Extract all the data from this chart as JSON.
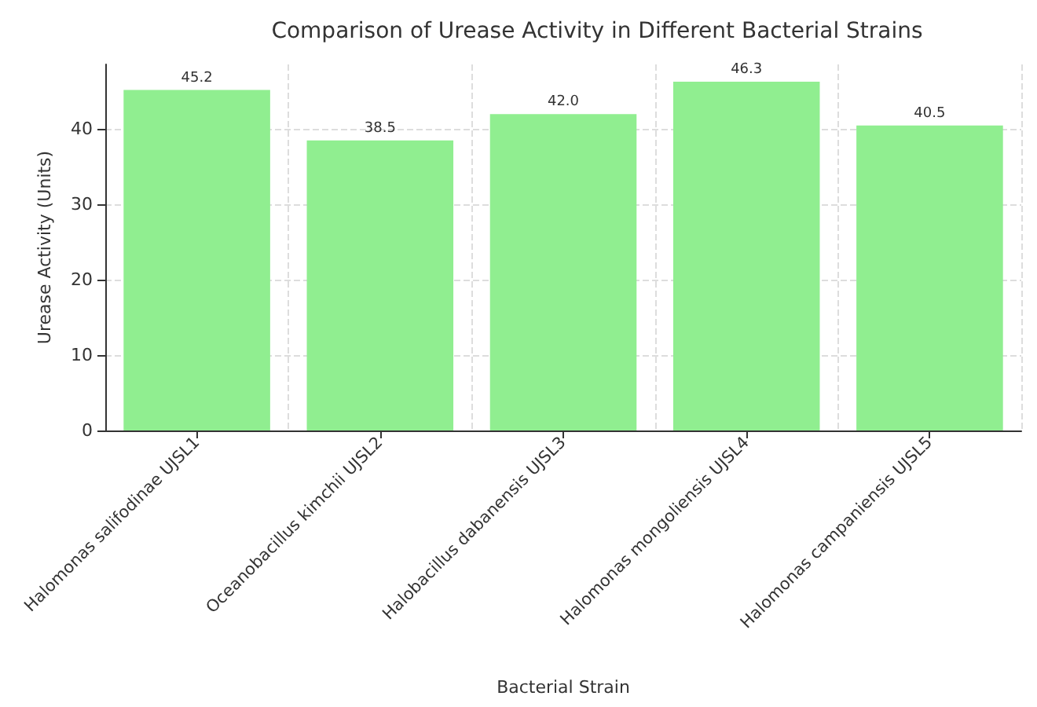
{
  "chart_data": {
    "type": "bar",
    "title": "Comparison of Urease Activity in Different Bacterial Strains",
    "xlabel": "Bacterial Strain",
    "ylabel": "Urease Activity (Units)",
    "categories": [
      "Halomonas salifodinae UJSL1",
      "Oceanobacillus kimchii UJSL2",
      "Halobacillus dabanensis UJSL3",
      "Halomonas mongoliensis UJSL4",
      "Halomonas campaniensis UJSL5"
    ],
    "values": [
      45.2,
      38.5,
      42.0,
      46.3,
      40.5
    ],
    "value_labels": [
      "45.2",
      "38.5",
      "42.0",
      "46.3",
      "40.5"
    ],
    "color": "#90ee90",
    "ylim": [
      0,
      48.6
    ],
    "yticks": [
      0,
      10,
      20,
      30,
      40
    ],
    "grid": true
  }
}
